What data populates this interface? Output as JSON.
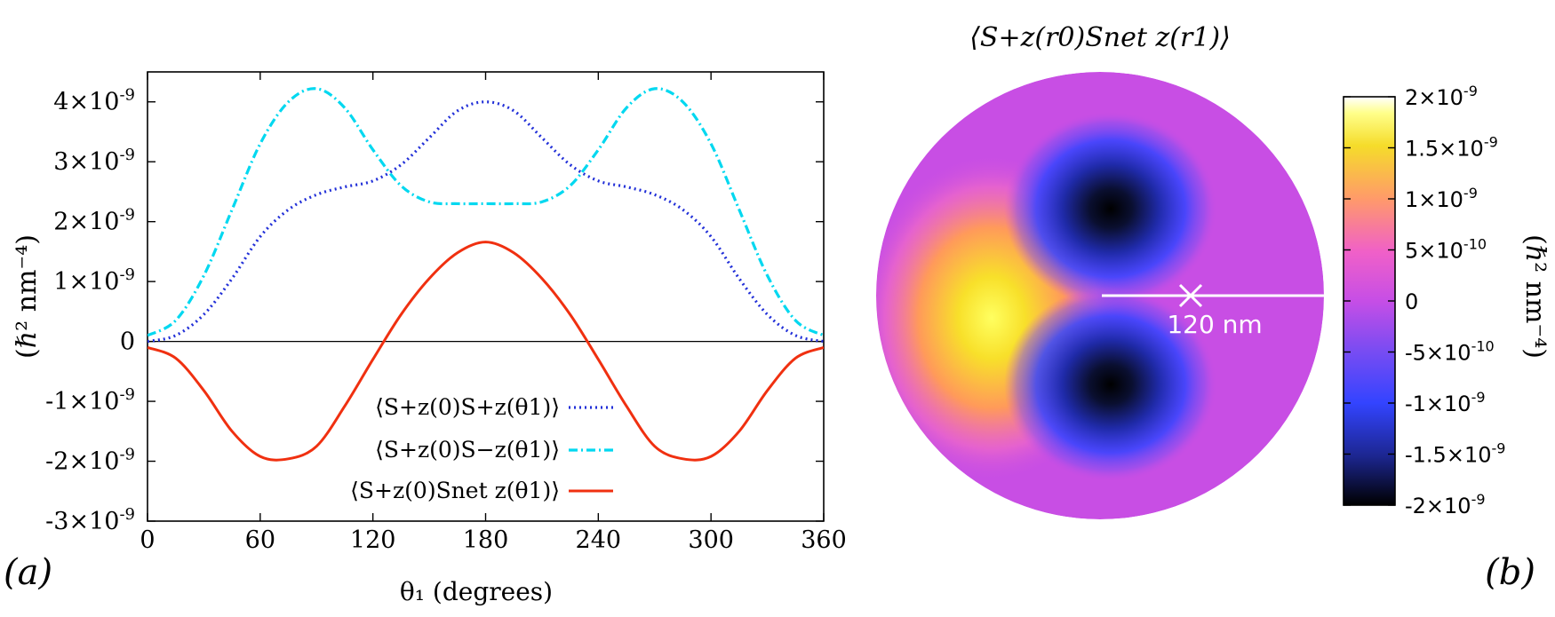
{
  "chart_data": [
    {
      "type": "line",
      "panel_label": "(a)",
      "xlabel": "θ₁ (degrees)",
      "ylabel": "(ℏ² nm⁻⁴)",
      "xlim": [
        0,
        360
      ],
      "ylim": [
        -3e-09,
        4.5e-09
      ],
      "x_ticks": [
        0,
        60,
        120,
        180,
        240,
        300,
        360
      ],
      "x_tick_labels": [
        "0",
        "60",
        "120",
        "180",
        "240",
        "300",
        "360"
      ],
      "y_ticks": [
        -3e-09,
        -2e-09,
        -1e-09,
        0,
        1e-09,
        2e-09,
        3e-09,
        4e-09
      ],
      "y_tick_labels": [
        "-3×10-9",
        "-2×10-9",
        "-1×10-9",
        "0",
        "1×10-9",
        "2×10-9",
        "3×10-9",
        "4×10-9"
      ],
      "zero_line": true,
      "legend_position": "bottom-center",
      "x": [
        0,
        15,
        30,
        45,
        60,
        75,
        90,
        105,
        120,
        135,
        150,
        165,
        180,
        195,
        210,
        225,
        240,
        255,
        270,
        285,
        300,
        315,
        330,
        345,
        360
      ],
      "series": [
        {
          "name": "⟨S+z(0)S+z(θ1)⟩",
          "color": "#2230d8",
          "style": "dotted",
          "values": [
            0.0,
            1e-10,
            4.5e-10,
            1.05e-09,
            1.75e-09,
            2.2e-09,
            2.45e-09,
            2.58e-09,
            2.68e-09,
            2.95e-09,
            3.4e-09,
            3.85e-09,
            4e-09,
            3.85e-09,
            3.4e-09,
            2.95e-09,
            2.68e-09,
            2.58e-09,
            2.45e-09,
            2.2e-09,
            1.75e-09,
            1.05e-09,
            4.5e-10,
            1e-10,
            0.0
          ]
        },
        {
          "name": "⟨S+z(0)S−z(θ1)⟩",
          "color": "#00d8f0",
          "style": "dashdot",
          "values": [
            1e-10,
            3.5e-10,
            1.1e-09,
            2.2e-09,
            3.3e-09,
            4e-09,
            4.22e-09,
            3.9e-09,
            3.2e-09,
            2.6e-09,
            2.33e-09,
            2.3e-09,
            2.3e-09,
            2.3e-09,
            2.33e-09,
            2.6e-09,
            3.2e-09,
            3.9e-09,
            4.22e-09,
            4e-09,
            3.3e-09,
            2.2e-09,
            1.1e-09,
            3.5e-10,
            1e-10
          ]
        },
        {
          "name": "⟨S+z(0)Snet z(θ1)⟩",
          "color": "#f03010",
          "style": "solid",
          "values": [
            -1e-10,
            -2.8e-10,
            -8.2e-10,
            -1.5e-09,
            -1.92e-09,
            -1.96e-09,
            -1.75e-09,
            -1.08e-09,
            -3e-10,
            4.5e-10,
            1.05e-09,
            1.48e-09,
            1.66e-09,
            1.48e-09,
            1.05e-09,
            4.5e-10,
            -3e-10,
            -1.08e-09,
            -1.75e-09,
            -1.96e-09,
            -1.92e-09,
            -1.5e-09,
            -8.2e-10,
            -2.8e-10,
            -1e-10
          ]
        }
      ]
    },
    {
      "type": "heatmap",
      "panel_label": "(b)",
      "title": "⟨S+z(r0)Snet z(r1)⟩",
      "annotation": "120 nm",
      "colorbar_label": "(ℏ² nm⁻⁴)",
      "clim": [
        -2e-09,
        2e-09
      ],
      "colorbar_ticks": [
        2e-09,
        1.5e-09,
        1e-09,
        5e-10,
        0,
        -5e-10,
        -1e-09,
        -1.5e-09,
        -2e-09
      ],
      "colorbar_tick_labels": [
        "2×10-9",
        "1.5×10-9",
        "1×10-9",
        "5×10-10",
        "0",
        "-5×10-10",
        "-1×10-9",
        "-1.5×10-9",
        "-2×10-9"
      ],
      "colormap": [
        "#000000",
        "#1f2a9e",
        "#3344ff",
        "#8a4ef0",
        "#c64ee6",
        "#f060c8",
        "#ff9a6a",
        "#f5dc2a",
        "#ffff8a",
        "#ffffff"
      ],
      "features": [
        {
          "label": "positive lobe",
          "angle_deg": 180,
          "radius_fraction": 0.45,
          "value": 1.6e-09
        },
        {
          "label": "negative lobe",
          "angle_deg": 60,
          "radius_fraction": 0.4,
          "value": -2e-09
        },
        {
          "label": "negative lobe",
          "angle_deg": 300,
          "radius_fraction": 0.4,
          "value": -2e-09
        }
      ]
    }
  ]
}
